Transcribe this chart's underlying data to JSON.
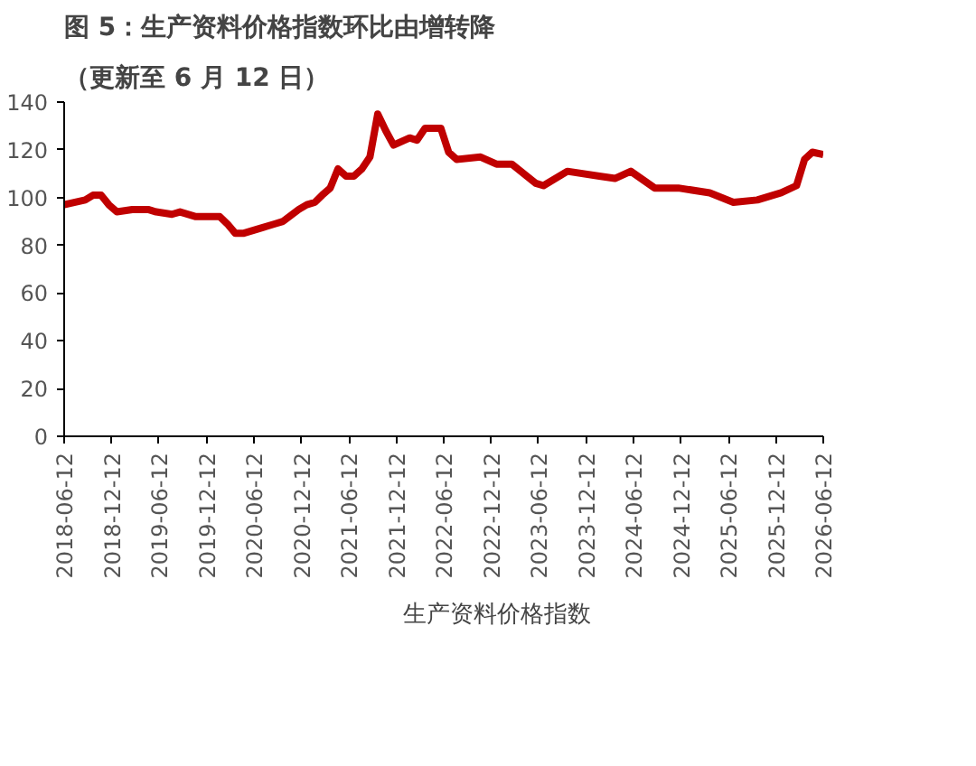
{
  "chart_data": {
    "type": "line",
    "title": "图 5：生产资料价格指数环比由增转降",
    "subtitle": "（更新至 6 月 12 日）",
    "x": [
      "2018-06-12",
      "2018-09",
      "2018-10",
      "2018-11",
      "2018-12",
      "2019-01",
      "2019-03",
      "2019-05",
      "2019-06",
      "2019-08",
      "2019-09",
      "2019-11",
      "2019-12",
      "2020-02",
      "2020-03",
      "2020-04",
      "2020-05",
      "2020-07",
      "2020-09",
      "2020-10",
      "2020-12",
      "2021-01",
      "2021-02",
      "2021-03",
      "2021-04",
      "2021-05",
      "2021-06",
      "2021-07",
      "2021-08",
      "2021-09",
      "2021-10",
      "2021-11",
      "2021-12",
      "2022-02",
      "2022-03",
      "2022-04",
      "2022-06",
      "2022-07",
      "2022-08",
      "2022-11",
      "2023-01",
      "2023-03",
      "2023-06",
      "2023-07",
      "2023-10",
      "2024-02",
      "2024-04",
      "2024-06",
      "2024-09",
      "2024-12",
      "2025-04",
      "2025-07",
      "2025-10",
      "2026-01",
      "2026-03",
      "2026-04",
      "2026-05",
      "2026-06-12"
    ],
    "series": [
      {
        "name": "生产资料价格指数",
        "color": "#c00000",
        "values": [
          97,
          99,
          101,
          101,
          97,
          94,
          95,
          95,
          94,
          93,
          94,
          92,
          92,
          92,
          89,
          85,
          85,
          87,
          89,
          90,
          95,
          97,
          98,
          101,
          104,
          112,
          109,
          109,
          112,
          117,
          135,
          128,
          122,
          125,
          124,
          129,
          129,
          119,
          116,
          117,
          114,
          114,
          106,
          105,
          111,
          109,
          108,
          111,
          104,
          104,
          102,
          98,
          99,
          102,
          105,
          116,
          119,
          118
        ]
      }
    ],
    "xlim": [
      "2018-06-12",
      "2026-06-12"
    ],
    "xticks": [
      "2018-06-12",
      "2018-12-12",
      "2019-06-12",
      "2019-12-12",
      "2020-06-12",
      "2020-12-12",
      "2021-06-12",
      "2021-12-12",
      "2022-06-12",
      "2022-12-12",
      "2023-06-12",
      "2023-12-12",
      "2024-06-12",
      "2024-12-12",
      "2025-06-12",
      "2025-12-12",
      "2026-06-12"
    ],
    "ylim": [
      0,
      140
    ],
    "yticks": [
      0,
      20,
      40,
      60,
      80,
      100,
      120,
      140
    ],
    "grid": false,
    "legend": "bottom",
    "marker": "none",
    "line_style": "solid"
  }
}
